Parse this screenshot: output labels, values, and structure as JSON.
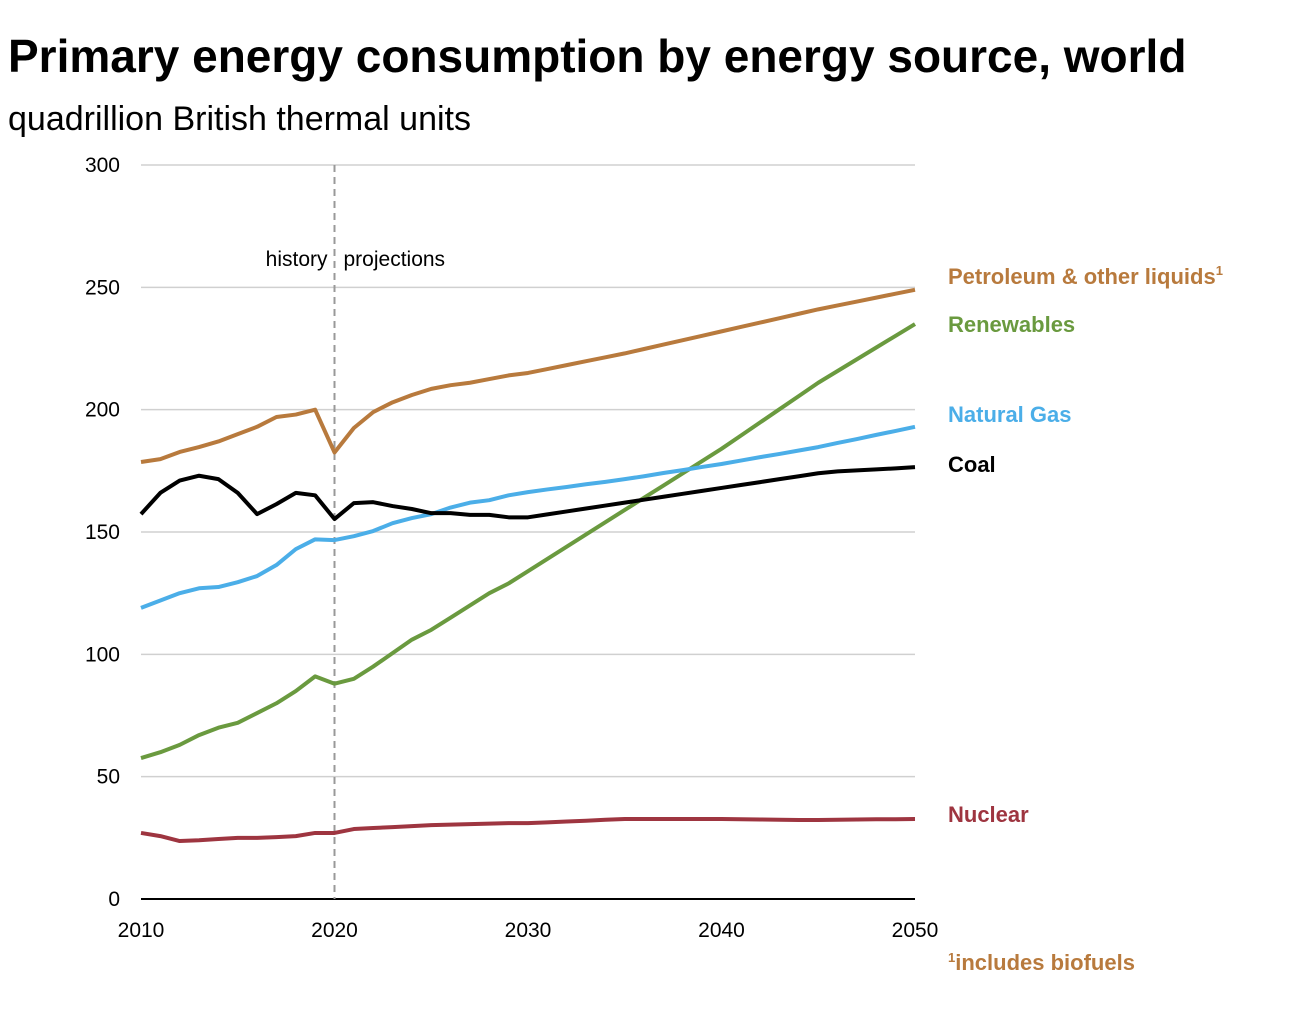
{
  "chart_data": {
    "type": "line",
    "title": "Primary energy consumption by energy source, world",
    "subtitle": "quadrillion British thermal units",
    "xlabel": "",
    "ylabel": "",
    "xlim": [
      2010,
      2050
    ],
    "ylim": [
      0,
      300
    ],
    "x_ticks": [
      2010,
      2020,
      2030,
      2040,
      2050
    ],
    "y_ticks": [
      0,
      50,
      100,
      150,
      200,
      250,
      300
    ],
    "grid": "horizontal",
    "legend": "right, labels next to line ends",
    "annotations": {
      "divider_year": 2020,
      "history": "history",
      "projections": "projections"
    },
    "footnote": "includes biofuels",
    "footnote_mark": "1",
    "x": [
      2010,
      2011,
      2012,
      2013,
      2014,
      2015,
      2016,
      2017,
      2018,
      2019,
      2020,
      2021,
      2022,
      2023,
      2024,
      2025,
      2026,
      2027,
      2028,
      2029,
      2030,
      2031,
      2032,
      2033,
      2034,
      2035,
      2036,
      2037,
      2038,
      2039,
      2040,
      2041,
      2042,
      2043,
      2044,
      2045,
      2046,
      2047,
      2048,
      2049,
      2050
    ],
    "series": [
      {
        "name": "Petroleum & other liquids",
        "superscript": "1",
        "color": "#B87A3D",
        "values": [
          178.6,
          179.8,
          182.7,
          184.7,
          187,
          190,
          193,
          197,
          198,
          200,
          182.5,
          192.5,
          199,
          203,
          206,
          208.5,
          210,
          211,
          212.5,
          214,
          215,
          216.6,
          218.2,
          219.8,
          221.4,
          223,
          224.8,
          226.6,
          228.4,
          230.2,
          232,
          233.8,
          235.6,
          237.4,
          239.2,
          241,
          242.6,
          244.2,
          245.8,
          247.4,
          249
        ]
      },
      {
        "name": "Renewables",
        "color": "#6A9A3F",
        "values": [
          57.6,
          60,
          63,
          67,
          70,
          72,
          76,
          80,
          85,
          91,
          88,
          90,
          95,
          100.5,
          106,
          110,
          115,
          120,
          125,
          129,
          134,
          139,
          144,
          149,
          154,
          159,
          164,
          169,
          174,
          179,
          184,
          189.4,
          194.8,
          200.2,
          205.6,
          211,
          215.8,
          220.6,
          225.4,
          230.2,
          235
        ]
      },
      {
        "name": "Natural Gas",
        "color": "#4BAEE8",
        "values": [
          119,
          122,
          125,
          127,
          127.5,
          129.5,
          132,
          136.5,
          143,
          147,
          146.7,
          148.3,
          150.4,
          153.6,
          155.7,
          157.3,
          160,
          162,
          163,
          165,
          166.3,
          167.4,
          168.4,
          169.5,
          170.5,
          171.6,
          172.8,
          174.1,
          175.3,
          176.6,
          177.8,
          179.2,
          180.6,
          181.9,
          183.3,
          184.7,
          186.4,
          188,
          189.7,
          191.3,
          193
        ]
      },
      {
        "name": "Coal",
        "color": "#000000",
        "values": [
          157.3,
          166,
          171,
          173,
          171.6,
          166,
          157.3,
          161.4,
          166,
          165,
          155.3,
          161.8,
          162.2,
          160.6,
          159.4,
          157.7,
          157.7,
          157,
          157,
          156,
          156,
          157.2,
          158.4,
          159.6,
          160.8,
          162,
          163.2,
          164.4,
          165.6,
          166.8,
          168,
          169.2,
          170.4,
          171.6,
          172.8,
          174,
          174.8,
          175.2,
          175.6,
          176,
          176.5
        ]
      },
      {
        "name": "Nuclear",
        "color": "#9E3540",
        "values": [
          27,
          25.7,
          23.7,
          24,
          24.5,
          25,
          25,
          25.3,
          25.7,
          27,
          27,
          28.6,
          29,
          29.4,
          29.8,
          30.2,
          30.4,
          30.6,
          30.8,
          31,
          31,
          31.3,
          31.7,
          32,
          32.4,
          32.7,
          32.7,
          32.7,
          32.7,
          32.7,
          32.7,
          32.6,
          32.5,
          32.4,
          32.3,
          32.3,
          32.4,
          32.5,
          32.6,
          32.6,
          32.7
        ]
      }
    ]
  }
}
